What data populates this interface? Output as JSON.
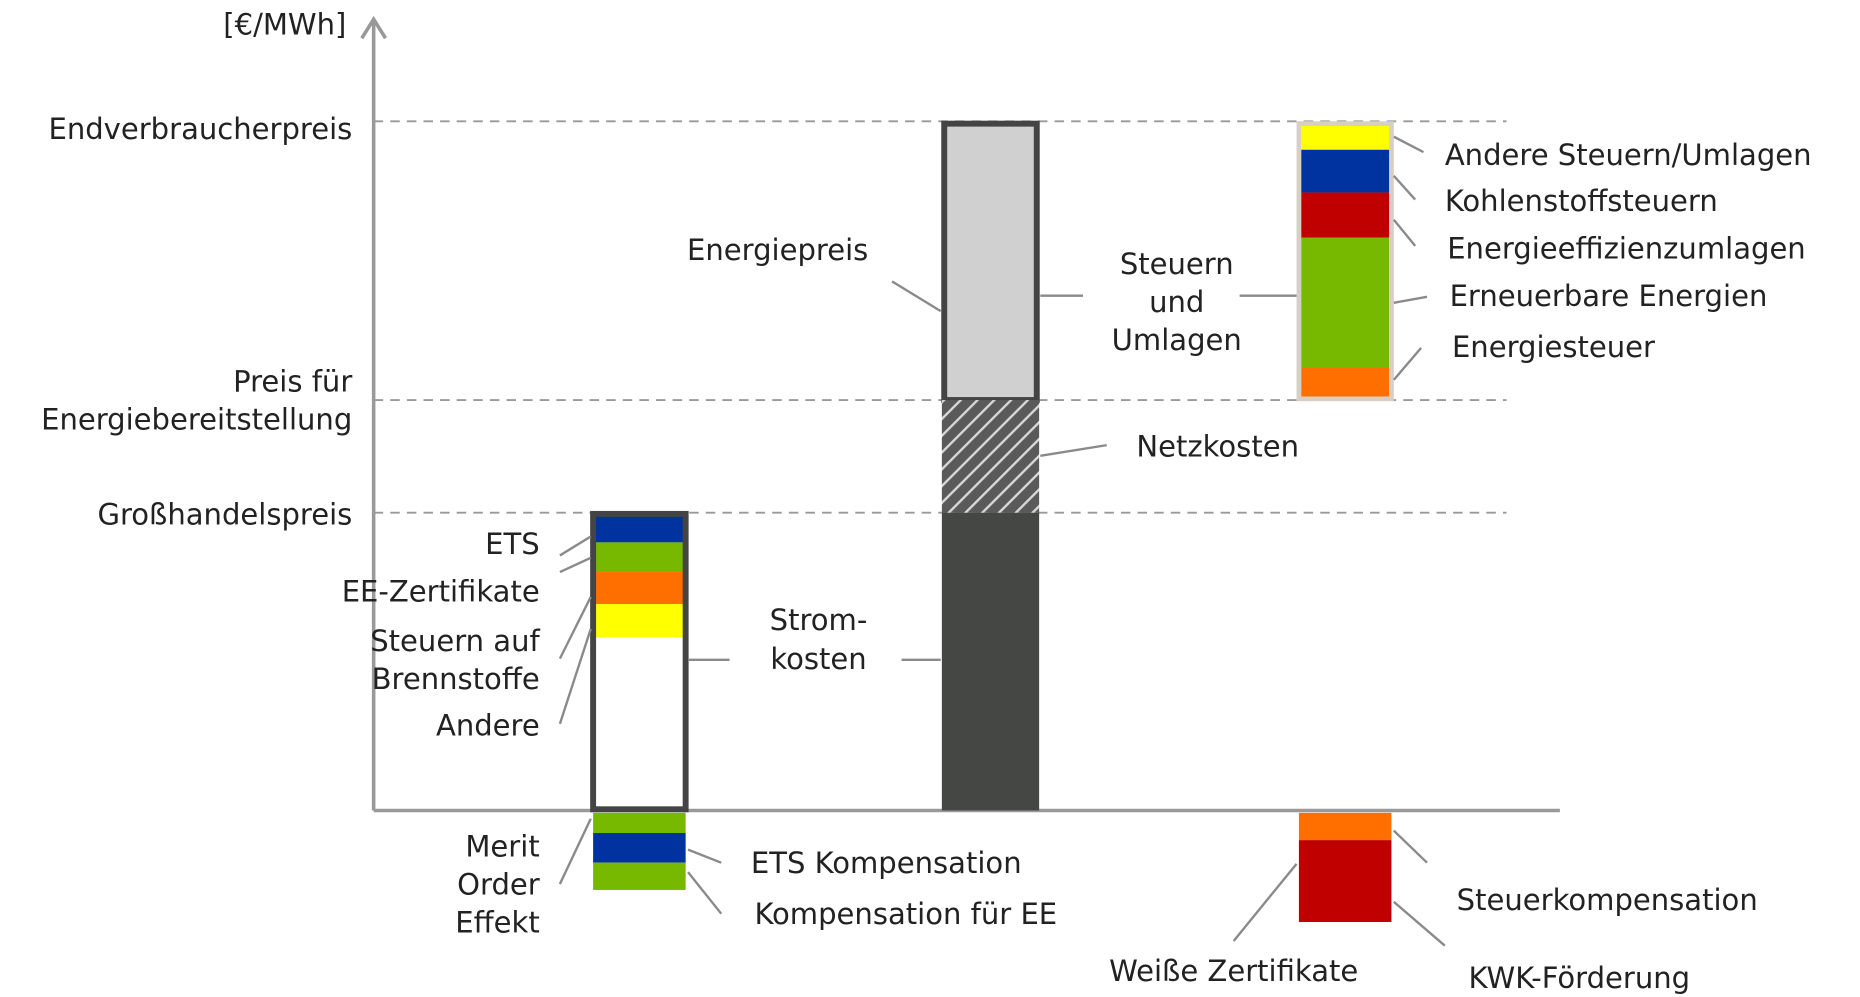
{
  "axis_label": "[€/MWh]",
  "levels": {
    "end_price": "Endverbraucherpreis",
    "supply_price": [
      "Preis für",
      "Energiebereitstellung"
    ],
    "wholesale_price": "Großhandelspreis"
  },
  "wholesale_bar": {
    "components": [
      "ETS",
      "EE-Zertifikate",
      [
        "Steuern auf",
        "Brennstoffe"
      ],
      "Andere"
    ],
    "offset_label": [
      "Merit",
      "Order",
      "Effekt"
    ],
    "offsets": [
      "ETS Kompensation",
      "Kompensation für EE"
    ]
  },
  "middle_bar": {
    "energy": "Energiepreis",
    "power_costs": [
      "Strom-",
      "kosten"
    ],
    "grid": "Netzkosten",
    "taxes": [
      "Steuern",
      "und",
      "Umlagen"
    ]
  },
  "tax_bar": {
    "components": [
      "Andere Steuern/Umlagen",
      "Kohlenstoffsteuern",
      "Energieeffizienzumlagen",
      "Erneuerbare Energien",
      "Energiesteuer"
    ],
    "offsets": [
      "Steuerkompensation",
      "KWK-Förderung",
      "Weiße Zertifikate"
    ]
  }
}
